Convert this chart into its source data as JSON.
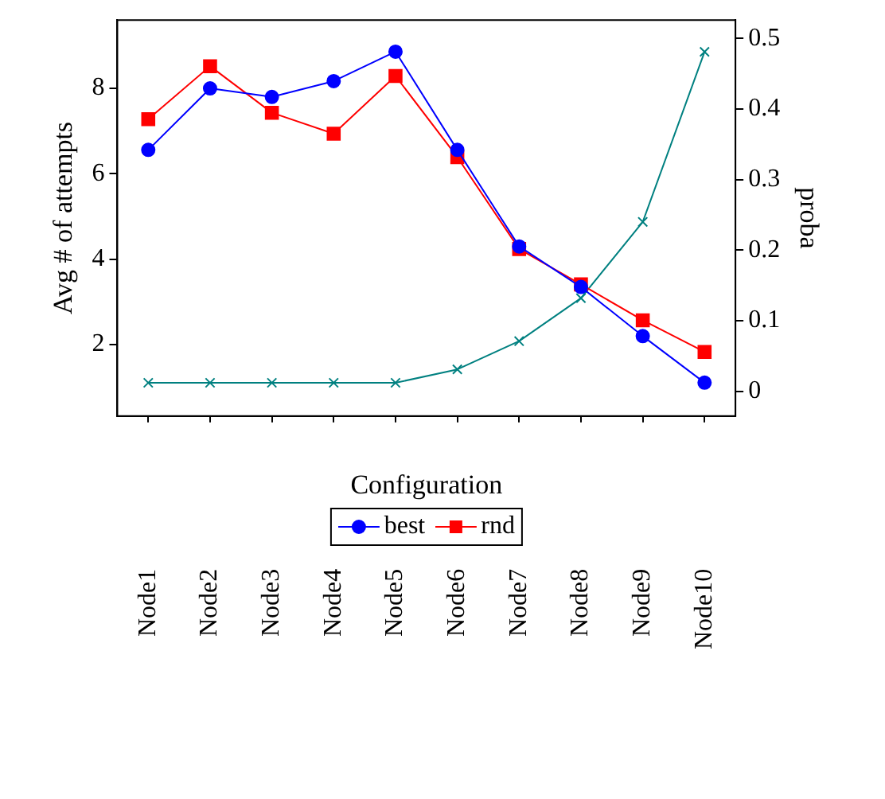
{
  "chart_data": {
    "type": "line",
    "xlabel": "Configuration",
    "ylabel": "Avg # of attempts",
    "y2label": "proba",
    "categories": [
      "Node1",
      "Node2",
      "Node3",
      "Node4",
      "Node5",
      "Node6",
      "Node7",
      "Node8",
      "Node9",
      "Node10"
    ],
    "series": [
      {
        "name": "best",
        "color": "#0000ff",
        "marker": "circle",
        "values": [
          6.56,
          8.0,
          7.8,
          8.17,
          8.86,
          6.56,
          4.3,
          3.35,
          2.2,
          1.11
        ]
      },
      {
        "name": "rnd",
        "color": "#ff0000",
        "marker": "square",
        "values": [
          7.28,
          8.52,
          7.43,
          6.94,
          8.29,
          6.39,
          4.24,
          3.41,
          2.57,
          1.83
        ]
      },
      {
        "color": "#008080",
        "marker": "cross",
        "axis": "y2",
        "values": [
          0.012,
          0.012,
          0.012,
          0.012,
          0.012,
          0.031,
          0.071,
          0.132,
          0.24,
          0.481
        ]
      }
    ],
    "ylim": [
      0.33,
      9.6
    ],
    "yticks": [
      2,
      4,
      6,
      8
    ],
    "y2lim": [
      -0.035,
      0.526
    ],
    "y2ticks": [
      0,
      0.1,
      0.2,
      0.3,
      0.4,
      0.5
    ],
    "grid": false,
    "legend": "bottom",
    "line_style": "solid"
  }
}
